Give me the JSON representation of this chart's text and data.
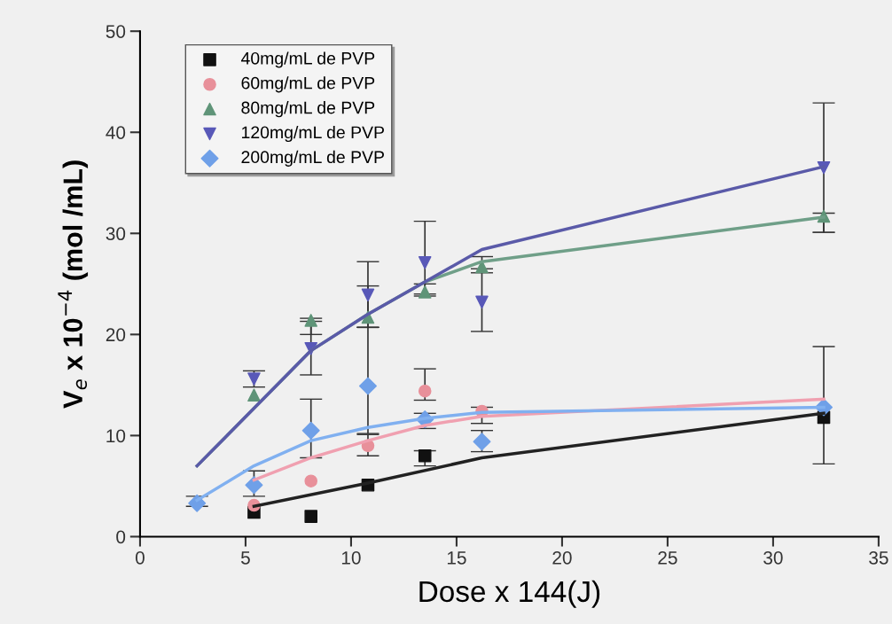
{
  "chart_data": {
    "type": "scatter",
    "xlabel": "Dose x 144(J)",
    "ylabel": "V$_{e}$ x 10$^{−4}$ (mol /mL)",
    "xlim": [
      0,
      35
    ],
    "ylim": [
      0,
      50
    ],
    "xticks": [
      0,
      5,
      10,
      15,
      20,
      25,
      30,
      35
    ],
    "yticks": [
      0,
      10,
      20,
      30,
      40,
      50
    ],
    "grid": false,
    "legend": "top left",
    "series": [
      {
        "name": "40mg/mL de PVP",
        "color": "#111111",
        "marker": "square",
        "x": [
          5.4,
          8.1,
          10.8,
          13.5,
          32.4
        ],
        "values": [
          2.4,
          2.0,
          5.1,
          8.0,
          11.8
        ],
        "errors": [
          null,
          null,
          null,
          [
            7.0,
            8.5
          ],
          null
        ]
      },
      {
        "name": "60mg/mL de PVP",
        "color": "#e8909a",
        "marker": "circle",
        "x": [
          5.4,
          8.1,
          10.8,
          13.5,
          16.2
        ],
        "values": [
          3.1,
          5.5,
          9.0,
          14.4,
          12.4
        ],
        "errors": [
          null,
          null,
          [
            8.0,
            10.1
          ],
          [
            13.5,
            16.6
          ],
          [
            11.2,
            12.8
          ]
        ]
      },
      {
        "name": "80mg/mL de PVP",
        "color": "#5f9478",
        "marker": "triangle",
        "x": [
          5.4,
          8.1,
          10.8,
          13.5,
          16.2,
          32.4
        ],
        "values": [
          14.0,
          21.4,
          21.7,
          24.2,
          26.7,
          31.7
        ],
        "errors": [
          null,
          [
            20.0,
            21.6
          ],
          [
            20.7,
            24.8
          ],
          [
            23.8,
            25.0
          ],
          [
            26.5,
            27.7
          ],
          [
            30.1,
            32.0
          ]
        ]
      },
      {
        "name": "120mg/mL de PVP",
        "color": "#5858b8",
        "marker": "triangle_down",
        "x": [
          5.4,
          8.1,
          10.8,
          13.5,
          16.2,
          32.4
        ],
        "values": [
          15.6,
          18.6,
          23.9,
          27.1,
          23.2,
          36.5
        ],
        "errors": [
          [
            14.8,
            16.4
          ],
          [
            16.0,
            21.3
          ],
          [
            20.7,
            27.2
          ],
          [
            24.0,
            31.2
          ],
          [
            20.3,
            26.1
          ],
          [
            30.1,
            42.9
          ]
        ]
      },
      {
        "name": "200mg/mL de PVP",
        "color": "#6fa0e8",
        "marker": "diamond",
        "x": [
          2.7,
          5.4,
          8.1,
          10.8,
          13.5,
          16.2,
          32.4
        ],
        "values": [
          3.3,
          5.1,
          10.5,
          14.9,
          11.6,
          9.4,
          12.8
        ],
        "errors": [
          [
            3.0,
            4.0
          ],
          [
            4.0,
            6.5
          ],
          [
            7.8,
            13.6
          ],
          [
            10.2,
            20.7
          ],
          [
            10.7,
            12.2
          ],
          [
            8.4,
            10.5
          ],
          [
            7.2,
            18.8
          ]
        ]
      },
      {
        "type": "line",
        "color": "#222222",
        "x": [
          5.4,
          10.8,
          16.2,
          32.4
        ],
        "values": [
          3.0,
          5.3,
          7.8,
          12.2
        ]
      },
      {
        "type": "line",
        "color": "#f0a0b0",
        "x": [
          5.4,
          8.1,
          10.8,
          13.5,
          16.2,
          32.4
        ],
        "values": [
          5.6,
          7.8,
          9.5,
          11.0,
          11.9,
          13.6
        ]
      },
      {
        "type": "line",
        "color": "#80b0f0",
        "x": [
          2.7,
          5.4,
          8.1,
          10.8,
          13.5,
          16.2,
          32.4
        ],
        "values": [
          3.6,
          7.0,
          9.5,
          10.8,
          11.7,
          12.3,
          12.8
        ]
      },
      {
        "type": "line",
        "color": "#6f9f88",
        "x": [
          2.7,
          8.1,
          10.8,
          13.5,
          16.2,
          32.4
        ],
        "values": [
          7.0,
          18.4,
          22.0,
          25.2,
          27.2,
          31.6
        ]
      },
      {
        "type": "line",
        "color": "#5a5aa8",
        "x": [
          2.7,
          8.1,
          10.8,
          13.5,
          16.2,
          32.4
        ],
        "values": [
          7.0,
          18.4,
          22.0,
          25.2,
          28.4,
          36.6
        ]
      }
    ]
  }
}
